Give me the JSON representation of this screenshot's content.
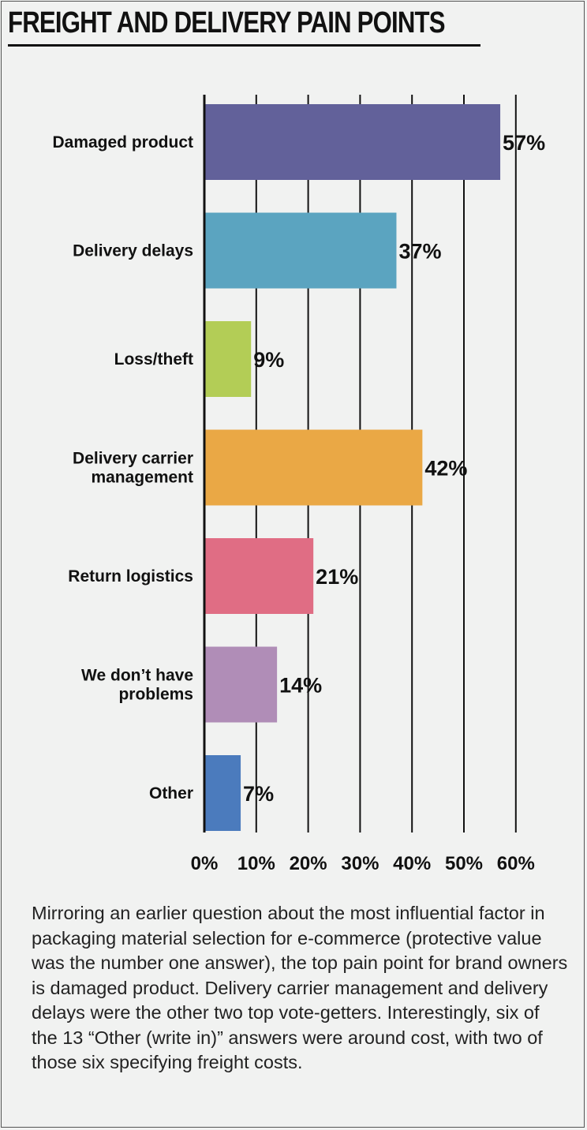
{
  "title": "FREIGHT AND DELIVERY PAIN POINTS",
  "caption": "Mirroring an earlier question about the most influential factor in packaging material selection for e-commerce (protective value was the number one answer), the top pain point for brand owners is damaged product. Delivery carrier management and delivery delays were the other two top vote-getters. Interestingly, six of the 13 “Other (write in)” answers were around cost, with two of those six specifying freight costs.",
  "chart_data": {
    "type": "bar",
    "orientation": "horizontal",
    "categories": [
      [
        "Damaged product"
      ],
      [
        "Delivery delays"
      ],
      [
        "Loss/theft"
      ],
      [
        "Delivery carrier",
        "management"
      ],
      [
        "Return logistics"
      ],
      [
        "We don’t have",
        "problems"
      ],
      [
        "Other"
      ]
    ],
    "values": [
      57,
      37,
      9,
      42,
      21,
      14,
      7
    ],
    "value_labels": [
      "57%",
      "37%",
      "9%",
      "42%",
      "21%",
      "14%",
      "7%"
    ],
    "colors": [
      "#62619a",
      "#5ba4c0",
      "#b3cd56",
      "#eaa845",
      "#e06d84",
      "#b08db7",
      "#4b7bbd"
    ],
    "xlim": [
      0,
      60
    ],
    "xticks": [
      0,
      10,
      20,
      30,
      40,
      50,
      60
    ],
    "xtick_labels": [
      "0%",
      "10%",
      "20%",
      "30%",
      "40%",
      "50%",
      "60%"
    ],
    "grid": "vertical",
    "legend": "none"
  }
}
